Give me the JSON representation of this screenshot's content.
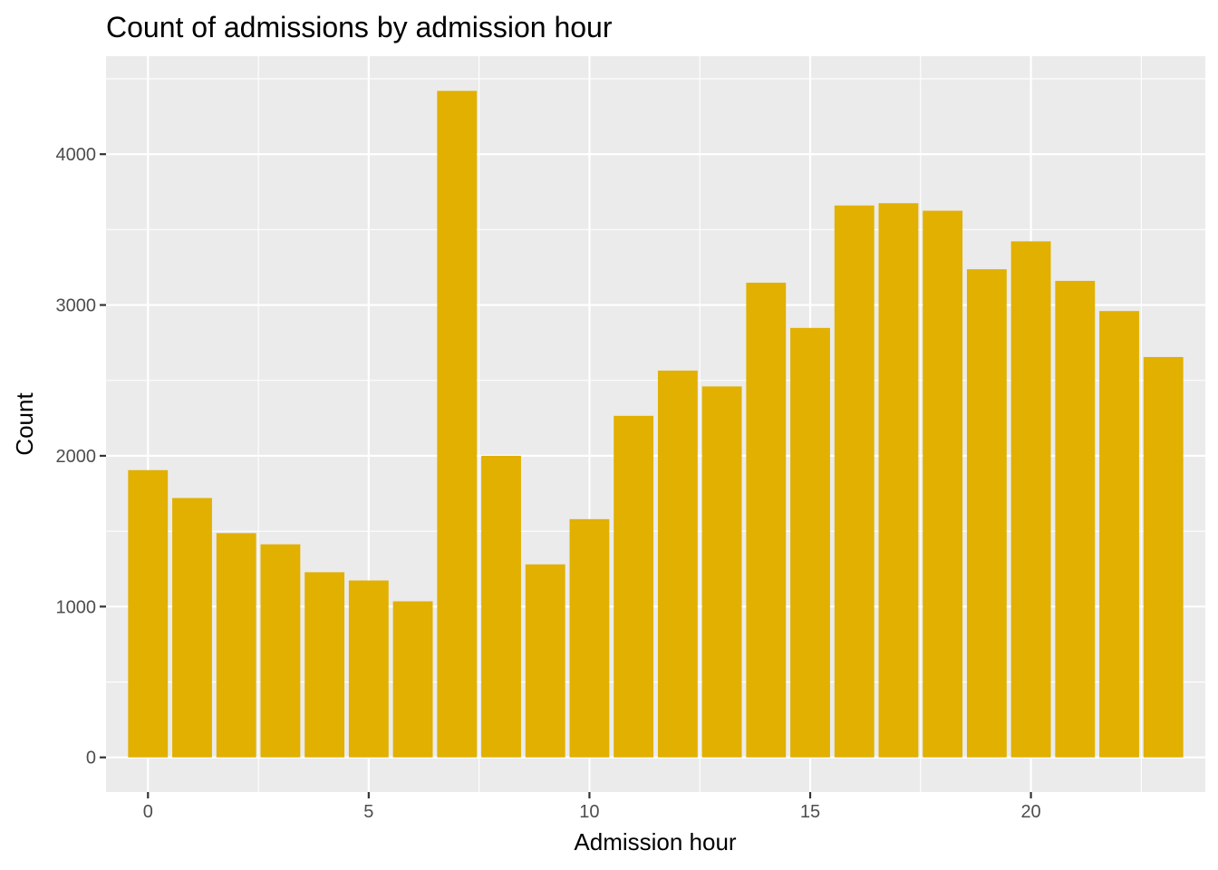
{
  "chart_data": {
    "type": "bar",
    "title": "Count of admissions by admission hour",
    "xlabel": "Admission hour",
    "ylabel": "Count",
    "x": [
      0,
      1,
      2,
      3,
      4,
      5,
      6,
      7,
      8,
      9,
      10,
      11,
      12,
      13,
      14,
      15,
      16,
      17,
      18,
      19,
      20,
      21,
      22,
      23
    ],
    "values": [
      1905,
      1720,
      1487,
      1413,
      1228,
      1173,
      1035,
      4420,
      2000,
      1280,
      1580,
      2265,
      2565,
      2460,
      3148,
      2848,
      3660,
      3675,
      3625,
      3237,
      3422,
      3160,
      2960,
      2655
    ],
    "xlim": [
      -0.95,
      23.95
    ],
    "ylim": [
      -230,
      4650
    ],
    "xticks": [
      0,
      5,
      10,
      15,
      20
    ],
    "xtick_labels": [
      "0",
      "5",
      "10",
      "15",
      "20"
    ],
    "yticks": [
      0,
      1000,
      2000,
      3000,
      4000
    ],
    "ytick_labels": [
      "0",
      "1000",
      "2000",
      "3000",
      "4000"
    ],
    "grid": true,
    "legend": "none",
    "colors": {
      "bar": "#E1B000",
      "panel": "#EBEBEB",
      "grid": "#FFFFFF",
      "tick_text": "#4D4D4D",
      "tick_mark": "#333333"
    }
  }
}
